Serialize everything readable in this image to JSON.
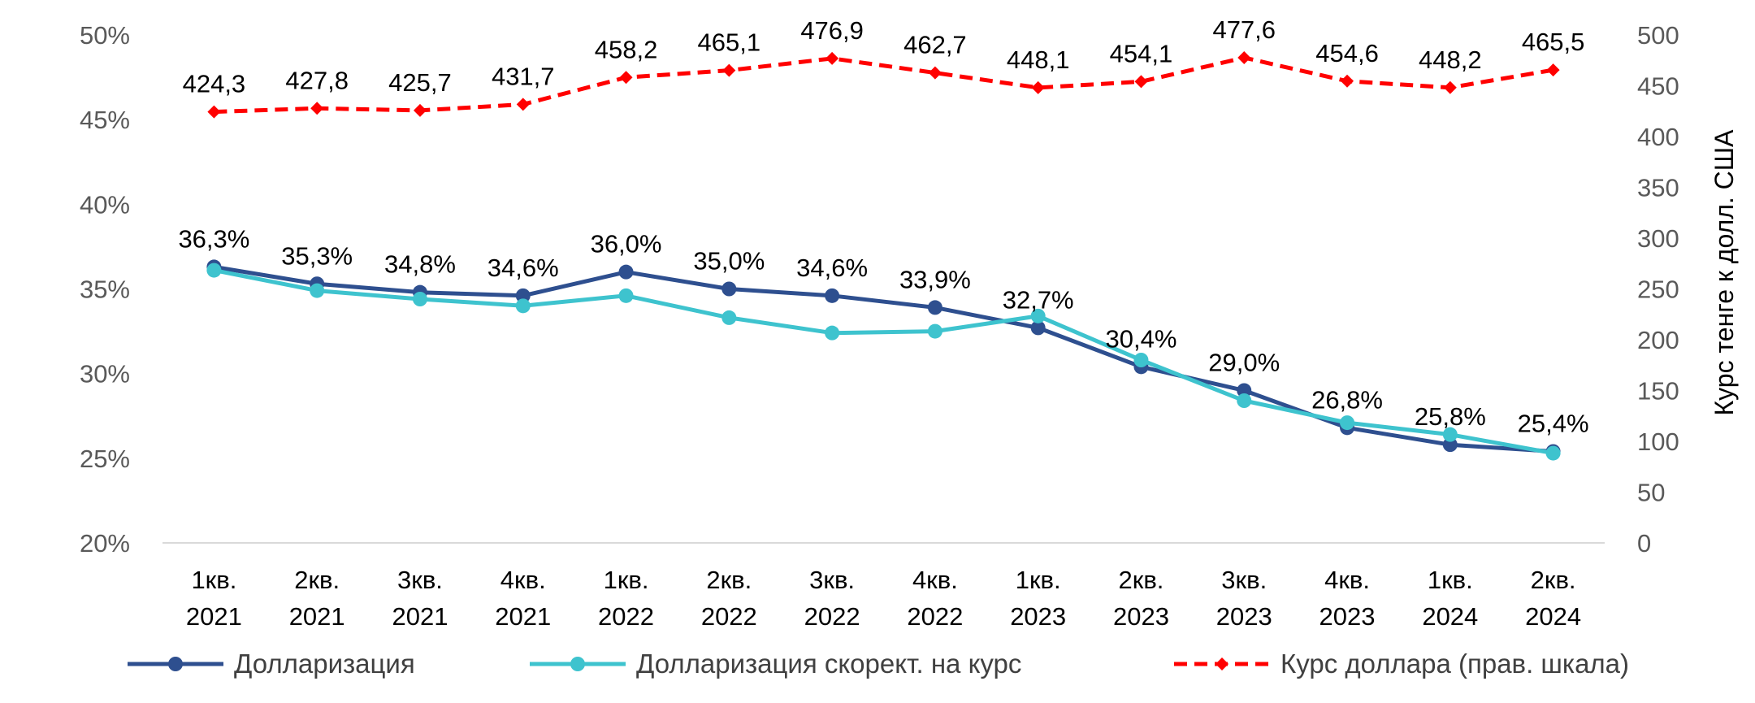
{
  "chart_data": {
    "type": "line",
    "categories": [
      [
        "1кв.",
        "2021"
      ],
      [
        "2кв.",
        "2021"
      ],
      [
        "3кв.",
        "2021"
      ],
      [
        "4кв.",
        "2021"
      ],
      [
        "1кв.",
        "2022"
      ],
      [
        "2кв.",
        "2022"
      ],
      [
        "3кв.",
        "2022"
      ],
      [
        "4кв.",
        "2022"
      ],
      [
        "1кв.",
        "2023"
      ],
      [
        "2кв.",
        "2023"
      ],
      [
        "3кв.",
        "2023"
      ],
      [
        "4кв.",
        "2023"
      ],
      [
        "1кв.",
        "2024"
      ],
      [
        "2кв.",
        "2024"
      ]
    ],
    "y_left": {
      "min": 20,
      "max": 50,
      "ticks": [
        "20%",
        "25%",
        "30%",
        "35%",
        "40%",
        "45%",
        "50%"
      ]
    },
    "y_right": {
      "min": 0,
      "max": 500,
      "ticks": [
        "0",
        "50",
        "100",
        "150",
        "200",
        "250",
        "300",
        "350",
        "400",
        "450",
        "500"
      ],
      "label": "Курс тенге к долл. США"
    },
    "series": [
      {
        "name": "Долларизация",
        "axis": "left",
        "color": "#2E4F8F",
        "style": "solid",
        "marker": "circle",
        "values": [
          36.3,
          35.3,
          34.8,
          34.6,
          36.0,
          35.0,
          34.6,
          33.9,
          32.7,
          30.4,
          29.0,
          26.8,
          25.8,
          25.4
        ],
        "labels": [
          "36,3%",
          "35,3%",
          "34,8%",
          "34,6%",
          "36,0%",
          "35,0%",
          "34,6%",
          "33,9%",
          "32,7%",
          "30,4%",
          "29,0%",
          "26,8%",
          "25,8%",
          "25,4%"
        ]
      },
      {
        "name": "Долларизация скорект. на курс",
        "axis": "left",
        "color": "#3EC3CE",
        "style": "solid",
        "marker": "circle",
        "values": [
          36.1,
          34.9,
          34.4,
          34.0,
          34.6,
          33.3,
          32.4,
          32.5,
          33.4,
          30.8,
          28.4,
          27.1,
          26.4,
          25.3
        ]
      },
      {
        "name": "Курс доллара (прав. шкала)",
        "axis": "right",
        "color": "#FF0000",
        "style": "dashed",
        "marker": "diamond",
        "values": [
          424.3,
          427.8,
          425.7,
          431.7,
          458.2,
          465.1,
          476.9,
          462.7,
          448.1,
          454.1,
          477.6,
          454.6,
          448.2,
          465.5
        ],
        "labels": [
          "424,3",
          "427,8",
          "425,7",
          "431,7",
          "458,2",
          "465,1",
          "476,9",
          "462,7",
          "448,1",
          "454,1",
          "477,6",
          "454,6",
          "448,2",
          "465,5"
        ]
      }
    ],
    "grid": false,
    "legend_position": "bottom"
  }
}
